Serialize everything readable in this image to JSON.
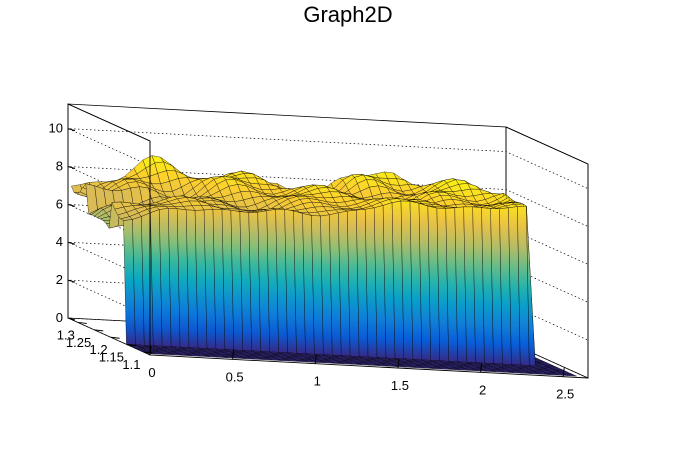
{
  "chart_data": {
    "type": "surface",
    "title": "Graph2D",
    "x_ticks": [
      "0",
      "0.5",
      "1",
      "1.5",
      "2",
      "2.5"
    ],
    "y_ticks": [
      "1.1",
      "1.15",
      "1.2",
      "1.25",
      "1.3"
    ],
    "z_ticks": [
      "0",
      "2",
      "4",
      "6",
      "8",
      "10"
    ],
    "xlim": [
      0,
      2.65
    ],
    "ylim": [
      1.08,
      1.33
    ],
    "zlim": [
      0,
      11.3
    ],
    "grid": true,
    "palette": [
      "#352a87",
      "#0363e1",
      "#1485d4",
      "#06a7c6",
      "#38b99e",
      "#92bf73",
      "#d9ba56",
      "#fcce2e",
      "#f9fb0e"
    ],
    "surface": {
      "x_start": 0,
      "x_end": 2.6,
      "x_steps": 48,
      "y_start": 1.09,
      "y_end": 1.32,
      "y_steps": 26,
      "x_cut": 2.45,
      "y_cut": 1.16,
      "back_level": 7.8,
      "plateau_left": 6.8,
      "plateau_right": 8.4
    }
  }
}
